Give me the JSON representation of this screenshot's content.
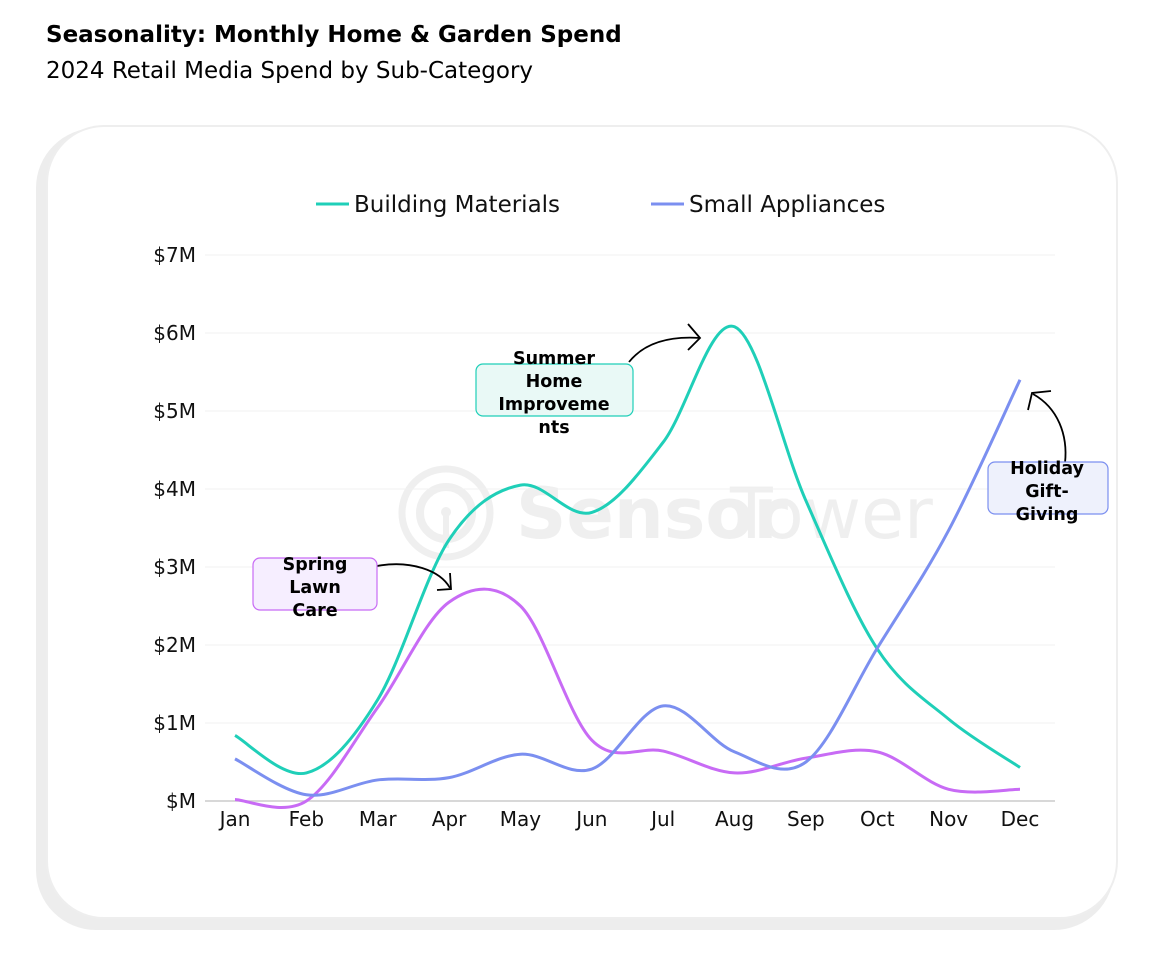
{
  "header": {
    "title": "Seasonality: Monthly Home & Garden Spend",
    "subtitle": "2024 Retail Media Spend by Sub-Category"
  },
  "watermark": {
    "brand_bold": "Sensor",
    "brand_light": "Tower",
    "icon": "sensor-tower-logo-icon"
  },
  "chart_data": {
    "type": "line",
    "title": "Seasonality: Monthly Home & Garden Spend",
    "subtitle": "2024 Retail Media Spend by Sub-Category",
    "xlabel": "",
    "ylabel": "",
    "categories": [
      "Jan",
      "Feb",
      "Mar",
      "Apr",
      "May",
      "Jun",
      "Jul",
      "Aug",
      "Sep",
      "Oct",
      "Nov",
      "Dec"
    ],
    "ylim": [
      0,
      7
    ],
    "yticks": [
      0,
      1,
      2,
      3,
      4,
      5,
      6,
      7
    ],
    "ytick_labels": [
      "$M",
      "$1M",
      "$2M",
      "$3M",
      "$4M",
      "$5M",
      "$6M",
      "$7M"
    ],
    "grid": true,
    "legend_position": "top-center",
    "series": [
      {
        "name": "Building Materials",
        "color": "#1fcfb8",
        "in_legend": true,
        "values": [
          0.84,
          0.36,
          1.3,
          3.35,
          4.05,
          3.7,
          4.6,
          6.08,
          3.85,
          1.95,
          1.05,
          0.43
        ]
      },
      {
        "name": "Small Appliances",
        "color": "#7b8ff0",
        "in_legend": true,
        "values": [
          0.54,
          0.08,
          0.27,
          0.3,
          0.6,
          0.41,
          1.22,
          0.63,
          0.5,
          1.96,
          3.47,
          5.4
        ]
      },
      {
        "name": "",
        "color": "#c86bf5",
        "in_legend": false,
        "values": [
          0.02,
          0.0,
          1.2,
          2.55,
          2.5,
          0.78,
          0.64,
          0.36,
          0.55,
          0.63,
          0.15,
          0.15
        ]
      }
    ],
    "annotations": [
      {
        "text_lines": [
          "Spring",
          "Lawn",
          "Care"
        ],
        "target_month": "Apr",
        "fill": "#f6eeff",
        "border": "#c86bf5"
      },
      {
        "text_lines": [
          "Summer",
          "Home",
          "Improveme",
          "nts"
        ],
        "target_month": "Aug",
        "fill": "#e9f9f6",
        "border": "#1fcfb8"
      },
      {
        "text_lines": [
          "Holiday",
          "Gift-",
          "Giving"
        ],
        "target_month": "Dec",
        "fill": "#eef1fc",
        "border": "#7b8ff0"
      }
    ]
  }
}
